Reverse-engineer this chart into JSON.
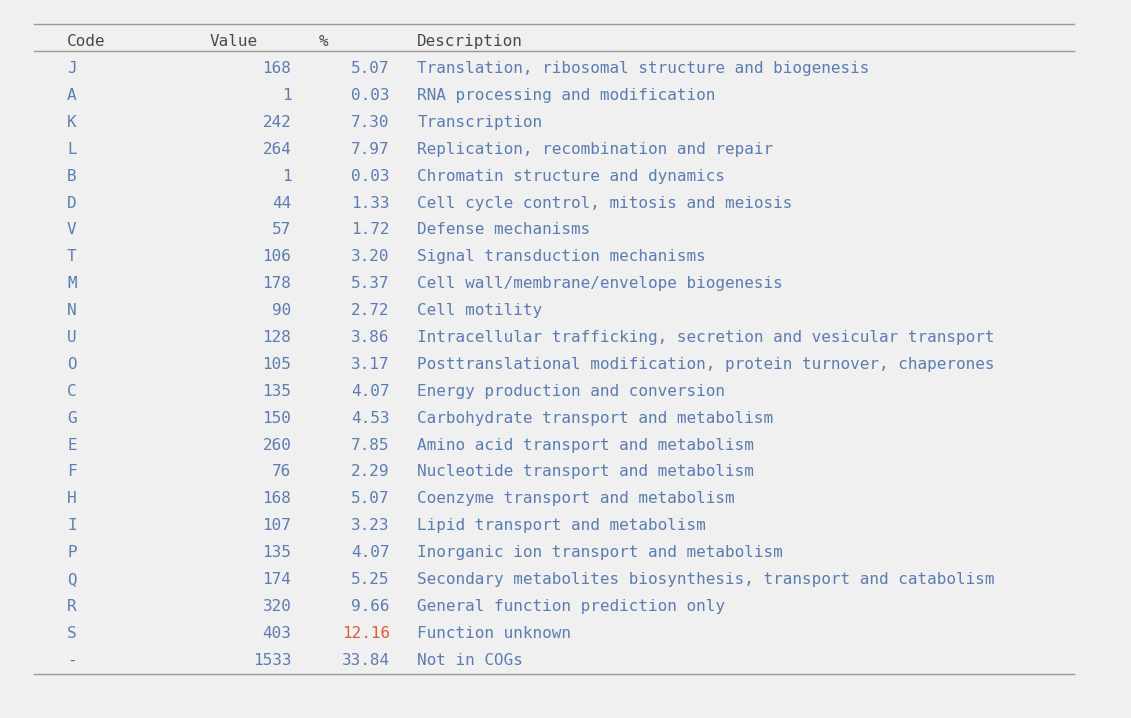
{
  "columns": [
    "Code",
    "Value",
    "%",
    "Description"
  ],
  "rows": [
    [
      "J",
      "168",
      "5.07",
      "Translation, ribosomal structure and biogenesis"
    ],
    [
      "A",
      "1",
      "0.03",
      "RNA processing and modification"
    ],
    [
      "K",
      "242",
      "7.30",
      "Transcription"
    ],
    [
      "L",
      "264",
      "7.97",
      "Replication, recombination and repair"
    ],
    [
      "B",
      "1",
      "0.03",
      "Chromatin structure and dynamics"
    ],
    [
      "D",
      "44",
      "1.33",
      "Cell cycle control, mitosis and meiosis"
    ],
    [
      "V",
      "57",
      "1.72",
      "Defense mechanisms"
    ],
    [
      "T",
      "106",
      "3.20",
      "Signal transduction mechanisms"
    ],
    [
      "M",
      "178",
      "5.37",
      "Cell wall/membrane/envelope biogenesis"
    ],
    [
      "N",
      "90",
      "2.72",
      "Cell motility"
    ],
    [
      "U",
      "128",
      "3.86",
      "Intracellular trafficking, secretion and vesicular transport"
    ],
    [
      "O",
      "105",
      "3.17",
      "Posttranslational modification, protein turnover, chaperones"
    ],
    [
      "C",
      "135",
      "4.07",
      "Energy production and conversion"
    ],
    [
      "G",
      "150",
      "4.53",
      "Carbohydrate transport and metabolism"
    ],
    [
      "E",
      "260",
      "7.85",
      "Amino acid transport and metabolism"
    ],
    [
      "F",
      "76",
      "2.29",
      "Nucleotide transport and metabolism"
    ],
    [
      "H",
      "168",
      "5.07",
      "Coenzyme transport and metabolism"
    ],
    [
      "I",
      "107",
      "3.23",
      "Lipid transport and metabolism"
    ],
    [
      "P",
      "135",
      "4.07",
      "Inorganic ion transport and metabolism"
    ],
    [
      "Q",
      "174",
      "5.25",
      "Secondary metabolites biosynthesis, transport and catabolism"
    ],
    [
      "R",
      "320",
      "9.66",
      "General function prediction only"
    ],
    [
      "S",
      "403",
      "12.16",
      "Function unknown"
    ],
    [
      "-",
      "1533",
      "33.84",
      "Not in COGs"
    ]
  ],
  "header_color": "#4a4a4a",
  "code_color": "#5b7db1",
  "value_color": "#5b7db1",
  "pct_color": "#5b7db1",
  "desc_color": "#5b7db1",
  "s_pct_color": "#e05c3a",
  "background_color": "#f0f0f0",
  "line_color": "#999999",
  "font_size": 11.5,
  "header_font_size": 11.5
}
